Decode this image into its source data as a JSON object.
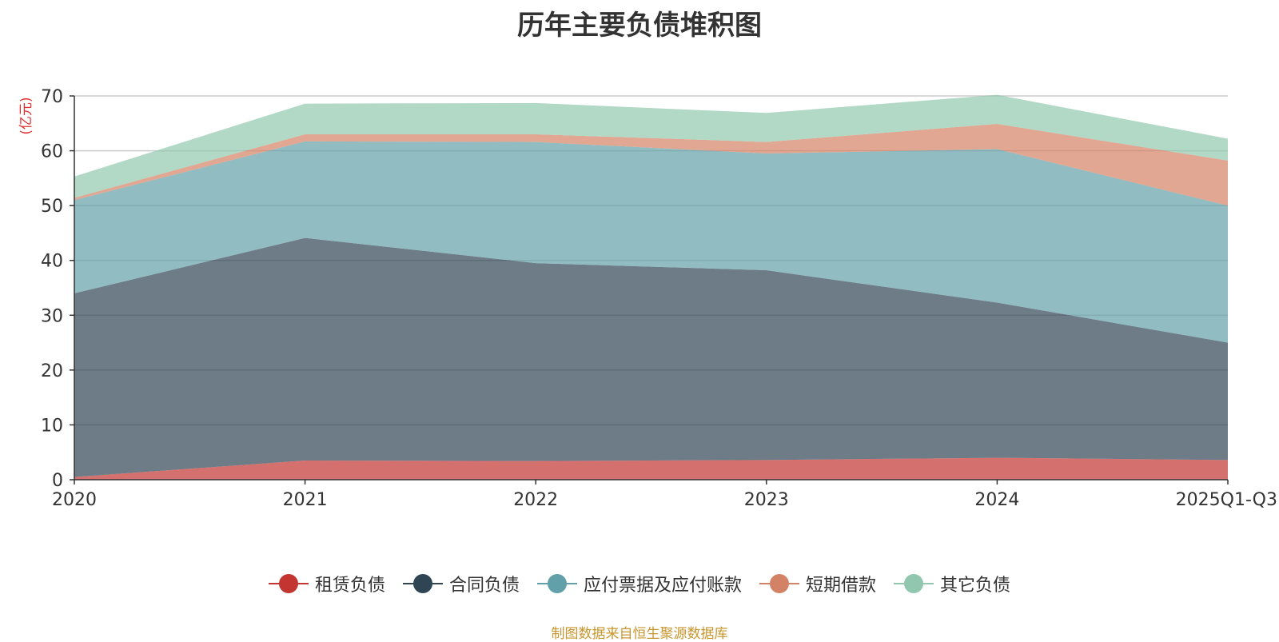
{
  "chart_data": {
    "type": "area",
    "stacked": true,
    "title": "历年主要负债堆积图",
    "ylabel": "(亿元)",
    "ylim": [
      0,
      70
    ],
    "yticks": [
      0,
      10,
      20,
      30,
      40,
      50,
      60,
      70
    ],
    "categories": [
      "2020",
      "2021",
      "2022",
      "2023",
      "2024",
      "2025Q1-Q3"
    ],
    "series": [
      {
        "name": "租赁负债",
        "color": "#c23531",
        "values": [
          0.5,
          3.5,
          3.4,
          3.6,
          4.0,
          3.6
        ]
      },
      {
        "name": "合同负债",
        "color": "#2f4554",
        "values": [
          33.5,
          40.6,
          36.1,
          34.6,
          28.3,
          21.4
        ]
      },
      {
        "name": "应付票据及应付账款",
        "color": "#61a0a8",
        "values": [
          17.0,
          17.6,
          22.1,
          21.3,
          28.0,
          25.0
        ]
      },
      {
        "name": "短期借款",
        "color": "#d48265",
        "values": [
          0.4,
          1.3,
          1.4,
          2.1,
          4.6,
          8.2
        ]
      },
      {
        "name": "其它负债",
        "color": "#91c7ae",
        "values": [
          3.9,
          5.6,
          5.7,
          5.3,
          5.3,
          4.0
        ]
      }
    ],
    "legend_position": "bottom",
    "grid": true
  },
  "source_note": "制图数据来自恒生聚源数据库"
}
